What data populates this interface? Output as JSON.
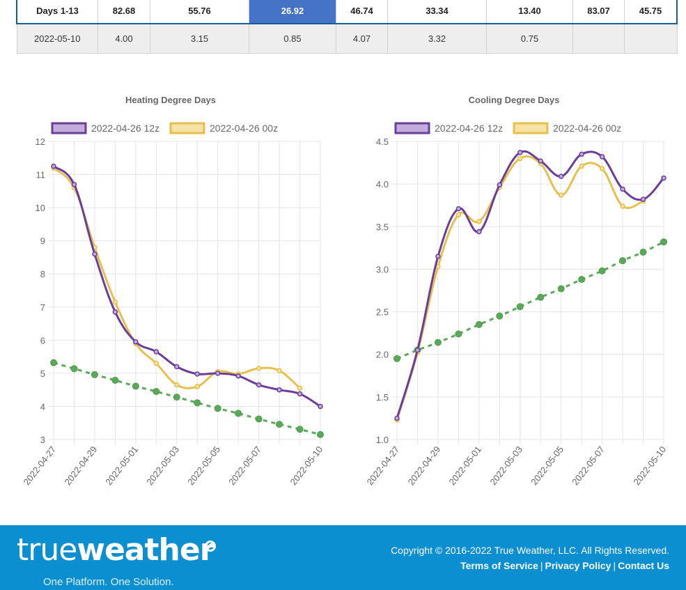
{
  "table": {
    "row1": [
      "Days 1-13",
      "82.68",
      "55.76",
      "26.92",
      "46.74",
      "33.34",
      "13.40",
      "83.07",
      "45.75"
    ],
    "row2": [
      "2022-05-10",
      "4.00",
      "3.15",
      "0.85",
      "4.07",
      "3.32",
      "0.75",
      "",
      ""
    ]
  },
  "footer": {
    "logo_thin": "true",
    "logo_bold": "weather",
    "tagline": "One Platform. One Solution.",
    "copyright": "Copyright © 2016-2022 True Weather, LLC. All Rights Reserved.",
    "links": [
      "Terms of Service",
      "Privacy Policy",
      "Contact Us"
    ],
    "link_separator": "|"
  },
  "colors": {
    "series_12z": "#6a3d9a",
    "series_12z_fill": "#c2aedb",
    "series_00z": "#e5c04d",
    "series_00z_fill": "#f5e1a4",
    "normal": "#5aa85a",
    "footer_bg": "#0b8fd1",
    "table_border": "#1a5d93",
    "table_highlight": "#4472c4"
  },
  "chart_data": [
    {
      "type": "line",
      "title": "Heating Degree Days",
      "x": [
        "2022-04-27",
        "2022-04-28",
        "2022-04-29",
        "2022-04-30",
        "2022-05-01",
        "2022-05-02",
        "2022-05-03",
        "2022-05-04",
        "2022-05-05",
        "2022-05-06",
        "2022-05-07",
        "2022-05-08",
        "2022-05-09",
        "2022-05-10"
      ],
      "x_tick_labels": [
        "2022-04-27",
        "2022-04-29",
        "2022-05-01",
        "2022-05-03",
        "2022-05-05",
        "2022-05-07",
        "2022-05-10"
      ],
      "ylim": [
        3,
        12
      ],
      "y_ticks": [
        "3",
        "4",
        "5",
        "6",
        "7",
        "8",
        "9",
        "10",
        "11",
        "12"
      ],
      "grid": true,
      "legend": "top",
      "series": [
        {
          "name": "2022-04-26 12z",
          "values": [
            11.25,
            10.7,
            8.6,
            6.85,
            5.95,
            5.65,
            5.2,
            4.98,
            5.0,
            4.92,
            4.65,
            4.5,
            4.38,
            4.0
          ]
        },
        {
          "name": "2022-04-26 00z",
          "values": [
            11.2,
            10.6,
            8.8,
            7.15,
            5.9,
            5.3,
            4.65,
            4.6,
            5.05,
            4.98,
            5.15,
            5.08,
            4.55,
            null
          ]
        },
        {
          "name": "",
          "style": "dashed",
          "values": [
            5.32,
            5.14,
            4.96,
            4.79,
            4.61,
            4.45,
            4.28,
            4.11,
            3.94,
            3.79,
            3.62,
            3.46,
            3.31,
            3.15
          ]
        }
      ]
    },
    {
      "type": "line",
      "title": "Cooling Degree Days",
      "x": [
        "2022-04-27",
        "2022-04-28",
        "2022-04-29",
        "2022-04-30",
        "2022-05-01",
        "2022-05-02",
        "2022-05-03",
        "2022-05-04",
        "2022-05-05",
        "2022-05-06",
        "2022-05-07",
        "2022-05-08",
        "2022-05-09",
        "2022-05-10"
      ],
      "x_tick_labels": [
        "2022-04-27",
        "2022-04-29",
        "2022-05-01",
        "2022-05-03",
        "2022-05-05",
        "2022-05-07",
        "2022-05-10"
      ],
      "ylim": [
        1.0,
        4.5
      ],
      "y_ticks": [
        "1.0",
        "1.5",
        "2.0",
        "2.5",
        "3.0",
        "3.5",
        "4.0",
        "4.5"
      ],
      "grid": true,
      "legend": "top",
      "series": [
        {
          "name": "2022-04-26 12z",
          "values": [
            1.25,
            2.05,
            3.15,
            3.71,
            3.44,
            3.99,
            4.37,
            4.27,
            4.09,
            4.35,
            4.32,
            3.94,
            3.82,
            4.07
          ]
        },
        {
          "name": "2022-04-26 00z",
          "values": [
            1.23,
            2.02,
            3.03,
            3.64,
            3.56,
            3.96,
            4.3,
            4.24,
            3.87,
            4.21,
            4.18,
            3.74,
            3.8,
            null
          ]
        },
        {
          "name": "",
          "style": "dashed",
          "values": [
            1.95,
            2.05,
            2.14,
            2.24,
            2.35,
            2.45,
            2.56,
            2.67,
            2.77,
            2.88,
            2.98,
            3.1,
            3.2,
            3.32
          ]
        }
      ]
    }
  ]
}
